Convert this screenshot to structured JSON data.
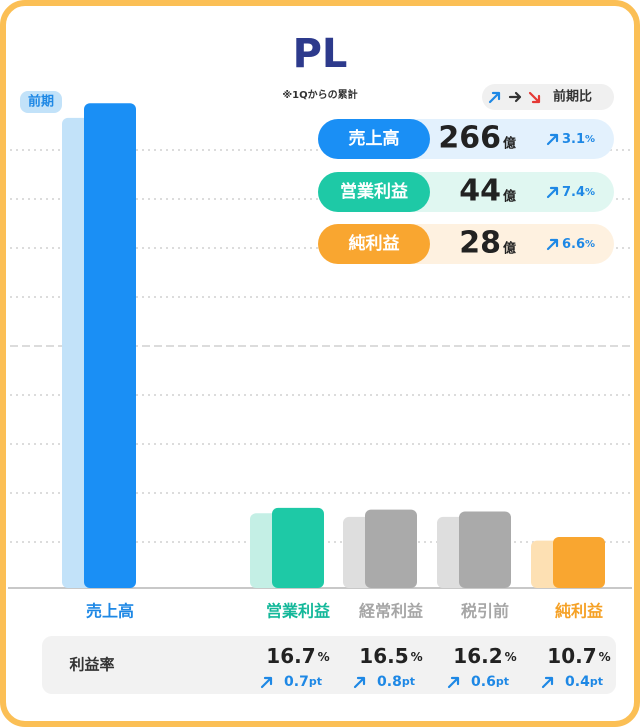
{
  "chart_data": {
    "type": "bar",
    "title": "PL",
    "subtitle": "※1Qからの累計",
    "categories": [
      "売上高",
      "営業利益",
      "経常利益",
      "税引前",
      "純利益"
    ],
    "label_colors": [
      "#1e88e5",
      "#14b89a",
      "#a6a6a6",
      "#a6a6a6",
      "#f5a126"
    ],
    "ylim": [
      0,
      270
    ],
    "series": [
      {
        "name": "前期",
        "values": [
          258,
          41,
          39,
          39,
          26
        ],
        "colors": [
          "#c2e2f9",
          "#c4efe5",
          "#dedede",
          "#dedede",
          "#fde0b3"
        ]
      },
      {
        "values": [
          266,
          44,
          43,
          42,
          28
        ],
        "colors": [
          "#1a8ff5",
          "#1ec9a6",
          "#aaaaaa",
          "#aaaaaa",
          "#f9a630"
        ]
      }
    ],
    "summary": {
      "legend": "前期比",
      "unit": "億",
      "change_unit": "%",
      "items": [
        {
          "label": "売上高",
          "value": 266,
          "change": 3.1,
          "color": "#1a8ff5",
          "background": "#e3f1fd"
        },
        {
          "label": "営業利益",
          "value": 44,
          "change": 7.4,
          "color": "#1ec9a6",
          "background": "#e0f7f1"
        },
        {
          "label": "純利益",
          "value": 28,
          "change": 6.6,
          "color": "#f9a630",
          "background": "#fef1e0"
        }
      ]
    },
    "margin": {
      "label": "利益率",
      "unit": "%",
      "delta_unit": "pt",
      "values": [
        16.7,
        16.5,
        16.2,
        10.7
      ],
      "deltas": [
        0.7,
        0.8,
        0.6,
        0.4
      ]
    }
  }
}
